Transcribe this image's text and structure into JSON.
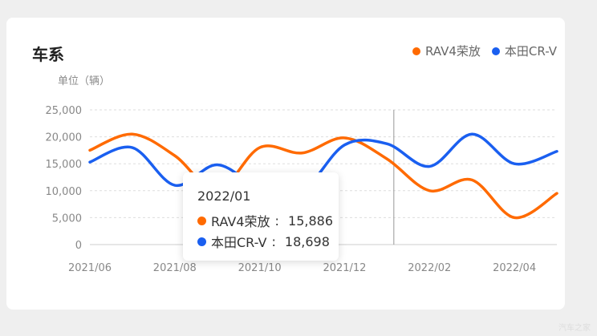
{
  "header": {
    "title": "车系",
    "unit": "单位（辆）"
  },
  "watermark": "汽车之家",
  "colors": {
    "rav4": "#ff6a00",
    "crv": "#1a5ff0"
  },
  "chart_data": {
    "type": "line",
    "smooth": true,
    "categories": [
      "2021/06",
      "2021/07",
      "2021/08",
      "2021/09",
      "2021/10",
      "2021/11",
      "2021/12",
      "2022/01",
      "2022/02",
      "2022/03",
      "2022/04",
      "2022/05"
    ],
    "x_tick_labels": [
      "2021/06",
      "2021/08",
      "2021/10",
      "2021/12",
      "2022/02",
      "2022/04"
    ],
    "series": [
      {
        "name": "RAV4荣放",
        "color": "#ff6a00",
        "values": [
          17500,
          20500,
          16500,
          10000,
          18000,
          17000,
          19800,
          15886,
          10000,
          12000,
          5000,
          9500
        ]
      },
      {
        "name": "本田CR-V",
        "color": "#1a5ff0",
        "values": [
          15300,
          18000,
          11000,
          14800,
          10500,
          10000,
          18500,
          18698,
          14500,
          20500,
          15000,
          17300
        ]
      }
    ],
    "y_ticks": [
      "25,000",
      "20,000",
      "15,000",
      "10,000",
      "5,000",
      "0"
    ],
    "ylim": [
      0,
      25000
    ],
    "grid": true,
    "legend_position": "top-right",
    "highlight_index": 7,
    "tooltip": {
      "date": "2022/01",
      "rows": [
        {
          "name": "RAV4荣放",
          "value": "15,886",
          "color": "#ff6a00"
        },
        {
          "name": "本田CR-V",
          "value": "18,698",
          "color": "#1a5ff0"
        }
      ]
    }
  }
}
